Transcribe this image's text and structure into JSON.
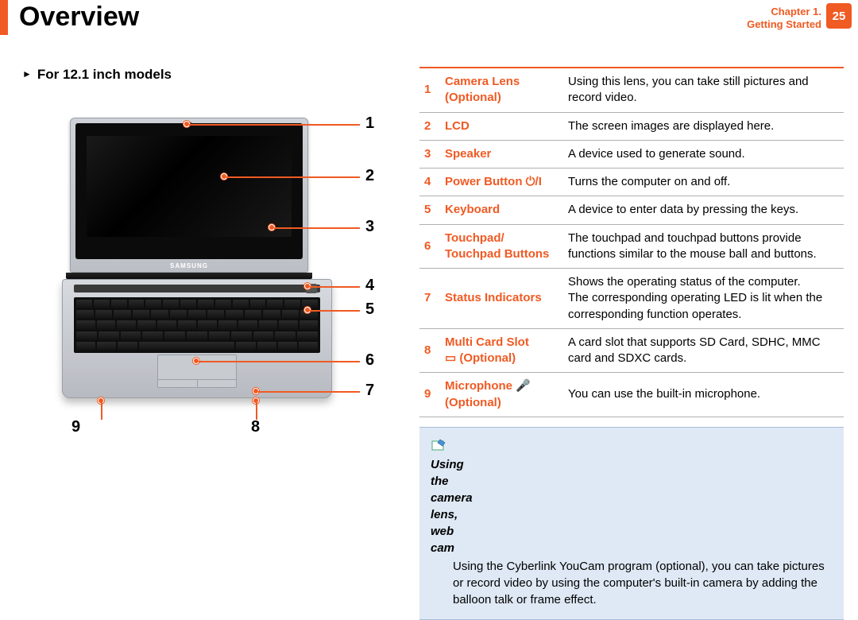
{
  "header": {
    "title": "Overview",
    "chapter_line1": "Chapter 1.",
    "chapter_line2": "Getting Started",
    "page_number": "25"
  },
  "subheading": "For 12.1 inch models",
  "diagram": {
    "brand": "SAMSUNG",
    "callouts": {
      "right": [
        "1",
        "2",
        "3",
        "4",
        "5",
        "6",
        "7"
      ],
      "bottom_left": "9",
      "bottom_right": "8"
    }
  },
  "colors": {
    "accent": "#f05a23",
    "infobox_bg": "#dfe9f5",
    "border_gray": "#b0b0b0"
  },
  "parts": [
    {
      "num": "1",
      "name_line1": "Camera Lens",
      "name_line2": "(Optional)",
      "desc": "Using this lens, you can take still pictures and record video."
    },
    {
      "num": "2",
      "name_line1": "LCD",
      "name_line2": "",
      "desc": "The screen images are displayed here."
    },
    {
      "num": "3",
      "name_line1": "Speaker",
      "name_line2": "",
      "desc": "A device used to generate sound."
    },
    {
      "num": "4",
      "name_line1": "Power Button ⏻/I",
      "name_line2": "",
      "desc": "Turns the computer on and off."
    },
    {
      "num": "5",
      "name_line1": "Keyboard",
      "name_line2": "",
      "desc": "A device to enter data by pressing the keys."
    },
    {
      "num": "6",
      "name_line1": "Touchpad/",
      "name_line2": "Touchpad Buttons",
      "desc": "The touchpad and touchpad buttons provide functions similar to the mouse ball and buttons."
    },
    {
      "num": "7",
      "name_line1": "Status Indicators",
      "name_line2": "",
      "desc": "Shows the operating status of the computer.\nThe corresponding operating LED is lit when the corresponding function operates."
    },
    {
      "num": "8",
      "name_line1": "Multi Card Slot",
      "name_line2": "▭ (Optional)",
      "desc": "A card slot that supports SD Card, SDHC, MMC card and SDXC cards."
    },
    {
      "num": "9",
      "name_line1": "Microphone 🎤",
      "name_line2": "(Optional)",
      "desc": "You can use the built-in microphone."
    }
  ],
  "infobox": {
    "title": "Using the camera lens, web cam",
    "body": "Using the Cyberlink YouCam program (optional), you can take pictures or record video by using the computer's built-in camera by adding the balloon talk or frame effect."
  }
}
